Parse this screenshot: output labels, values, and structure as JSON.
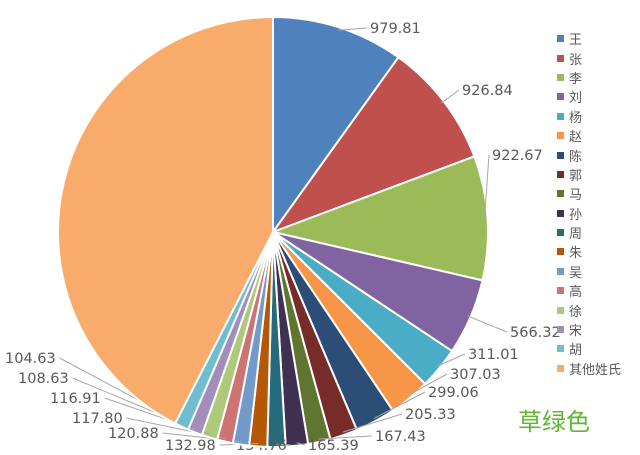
{
  "chart_data": {
    "type": "pie",
    "start_angle": "top",
    "direction": "clockwise",
    "legend_position": "right",
    "series": [
      {
        "name": "王",
        "value": 979.81,
        "label": "979.81",
        "color": "#4F81BD"
      },
      {
        "name": "张",
        "value": 926.84,
        "label": "926.84",
        "color": "#C0504D"
      },
      {
        "name": "李",
        "value": 922.67,
        "label": "922.67",
        "color": "#9BBB59"
      },
      {
        "name": "刘",
        "value": 566.32,
        "label": "566.32",
        "color": "#8064A2"
      },
      {
        "name": "杨",
        "value": 311.01,
        "label": "311.01",
        "color": "#4BACC6"
      },
      {
        "name": "赵",
        "value": 307.03,
        "label": "307.03",
        "color": "#F79646"
      },
      {
        "name": "陈",
        "value": 299.06,
        "label": "299.06",
        "color": "#2C4D75"
      },
      {
        "name": "郭",
        "value": 205.33,
        "label": "205.33",
        "color": "#772C2A"
      },
      {
        "name": "马",
        "value": 167.43,
        "label": "167.43",
        "color": "#5F7530"
      },
      {
        "name": "孙",
        "value": 165.39,
        "label": "165.39",
        "color": "#403152"
      },
      {
        "name": "周",
        "value": 134.76,
        "label": "134.76",
        "color": "#276A7C"
      },
      {
        "name": "朱",
        "value": 132.98,
        "label": "132.98",
        "color": "#B65708"
      },
      {
        "name": "吴",
        "value": 120.88,
        "label": "120.88",
        "color": "#729ACA"
      },
      {
        "name": "高",
        "value": 117.8,
        "label": "117.80",
        "color": "#CD7371"
      },
      {
        "name": "徐",
        "value": 116.91,
        "label": "116.91",
        "color": "#AFC97A"
      },
      {
        "name": "宋",
        "value": 108.63,
        "label": "108.63",
        "color": "#A18EBA"
      },
      {
        "name": "胡",
        "value": 104.63,
        "label": "104.63",
        "color": "#6FBDD1"
      },
      {
        "name": "其他姓氏",
        "value": 4200,
        "label": "",
        "color": "#F9AB6B"
      }
    ]
  },
  "watermark": "草绿色"
}
